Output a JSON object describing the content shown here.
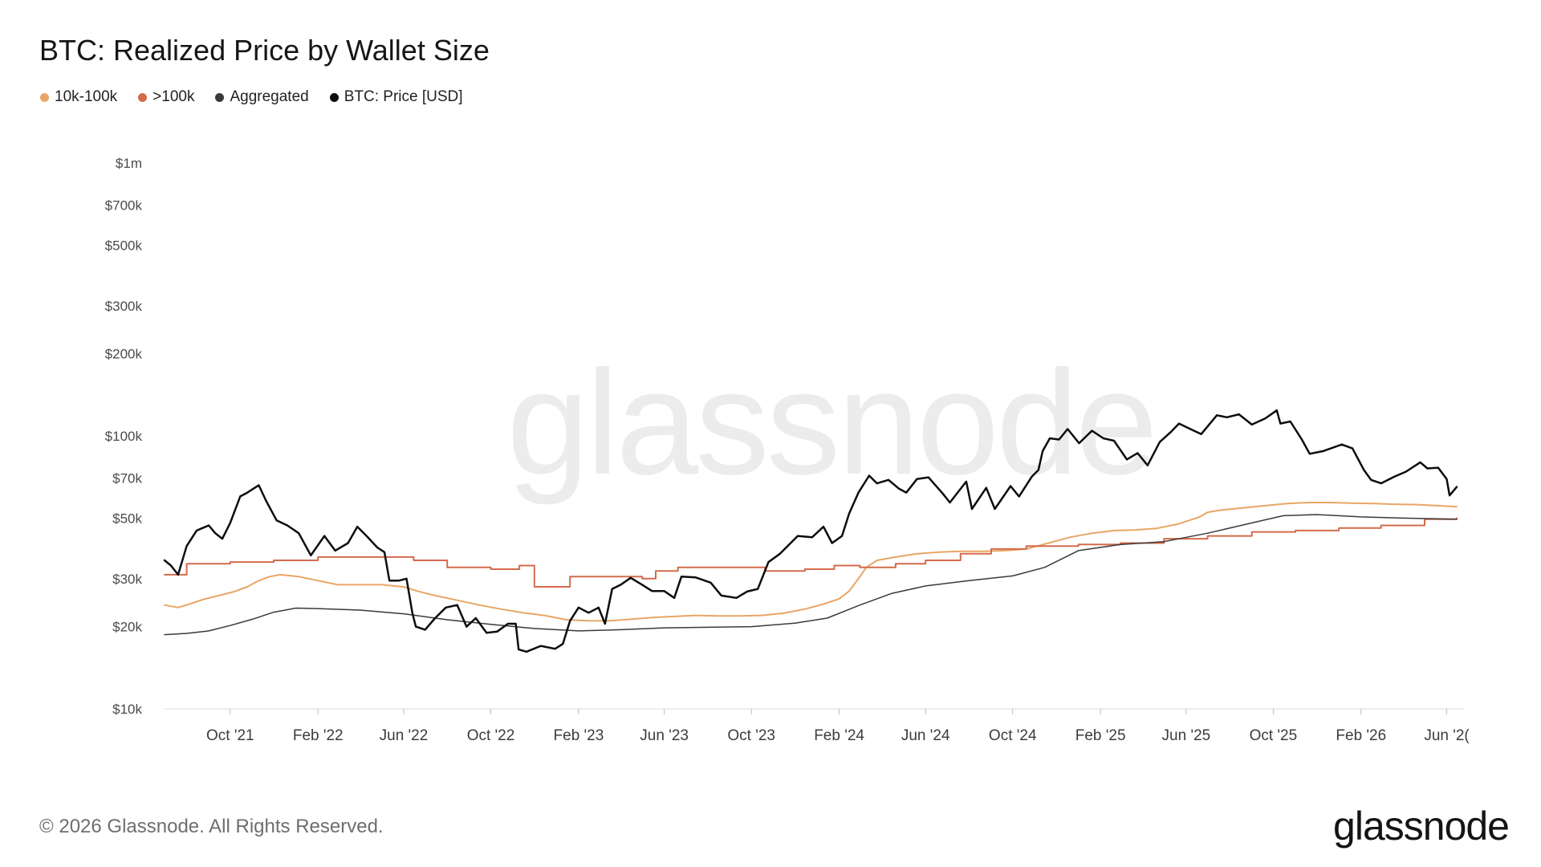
{
  "chart_data": {
    "type": "line",
    "title": "BTC: Realized Price by Wallet Size",
    "xlabel": "",
    "ylabel": "",
    "y_scale": "log",
    "ylim": [
      10000,
      1000000
    ],
    "y_ticks": [
      10000,
      20000,
      30000,
      50000,
      70000,
      100000,
      200000,
      300000,
      500000,
      700000,
      1000000
    ],
    "y_tick_labels": [
      "$10k",
      "$20k",
      "$30k",
      "$50k",
      "$70k",
      "$100k",
      "$200k",
      "$300k",
      "$500k",
      "$700k",
      "$1m"
    ],
    "xlim": [
      "2021-07-01",
      "2026-06-15"
    ],
    "x_ticks": [
      "2021-10-01",
      "2022-02-01",
      "2022-06-01",
      "2022-10-01",
      "2023-02-01",
      "2023-06-01",
      "2023-10-01",
      "2024-02-01",
      "2024-06-01",
      "2024-10-01",
      "2025-02-01",
      "2025-06-01",
      "2025-10-01",
      "2026-02-01",
      "2026-06-01"
    ],
    "x_tick_labels": [
      "Oct '21",
      "Feb '22",
      "Jun '22",
      "Oct '22",
      "Feb '23",
      "Jun '23",
      "Oct '23",
      "Feb '24",
      "Jun '24",
      "Oct '24",
      "Feb '25",
      "Jun '25",
      "Oct '25",
      "Feb '26",
      "Jun '2("
    ],
    "grid": false,
    "legend_position": "top-left",
    "series": [
      {
        "name": "10k-100k",
        "color": "#e8a666",
        "width": 2,
        "step": false,
        "x": [
          "2021-07-01",
          "2021-07-20",
          "2021-08-05",
          "2021-08-25",
          "2021-09-15",
          "2021-10-05",
          "2021-10-25",
          "2021-11-10",
          "2021-11-25",
          "2021-12-10",
          "2022-01-05",
          "2022-02-01",
          "2022-03-01",
          "2022-04-01",
          "2022-05-01",
          "2022-06-01",
          "2022-06-20",
          "2022-07-15",
          "2022-08-15",
          "2022-09-15",
          "2022-10-15",
          "2022-11-15",
          "2022-12-15",
          "2023-01-15",
          "2023-02-15",
          "2023-03-15",
          "2023-04-15",
          "2023-05-15",
          "2023-06-15",
          "2023-07-15",
          "2023-08-15",
          "2023-09-15",
          "2023-10-15",
          "2023-11-15",
          "2023-12-15",
          "2024-01-10",
          "2024-02-01",
          "2024-02-15",
          "2024-02-28",
          "2024-03-10",
          "2024-03-25",
          "2024-04-20",
          "2024-05-20",
          "2024-06-20",
          "2024-07-20",
          "2024-08-20",
          "2024-09-20",
          "2024-10-20",
          "2024-11-20",
          "2024-12-20",
          "2025-01-20",
          "2025-02-20",
          "2025-03-20",
          "2025-04-20",
          "2025-05-20",
          "2025-06-20",
          "2025-07-01",
          "2025-07-20",
          "2025-08-20",
          "2025-09-20",
          "2025-10-20",
          "2025-11-20",
          "2025-12-20",
          "2026-01-20",
          "2026-02-20",
          "2026-03-20",
          "2026-04-20",
          "2026-05-20",
          "2026-06-15"
        ],
        "y": [
          24000,
          23500,
          24200,
          25200,
          26000,
          26800,
          28000,
          29500,
          30500,
          31000,
          30500,
          29500,
          28500,
          28500,
          28500,
          28000,
          27000,
          26000,
          25000,
          24000,
          23200,
          22500,
          22000,
          21200,
          21000,
          21000,
          21300,
          21600,
          21800,
          22000,
          21900,
          21900,
          22000,
          22400,
          23200,
          24200,
          25300,
          27000,
          30000,
          33000,
          35000,
          36000,
          37000,
          37500,
          37800,
          37800,
          38000,
          38500,
          40500,
          42500,
          44000,
          45000,
          45200,
          45800,
          47500,
          50500,
          52500,
          53500,
          54500,
          55500,
          56500,
          57000,
          57000,
          56700,
          56500,
          56200,
          56000,
          55500,
          55000
        ]
      },
      {
        "name": ">100k",
        "color": "#d36b4b",
        "width": 2,
        "step": true,
        "x": [
          "2021-07-01",
          "2021-08-01",
          "2021-10-01",
          "2021-12-01",
          "2022-02-01",
          "2022-04-15",
          "2022-06-15",
          "2022-08-01",
          "2022-10-01",
          "2022-11-10",
          "2022-12-01",
          "2023-01-20",
          "2023-05-01",
          "2023-05-20",
          "2023-06-20",
          "2023-10-20",
          "2023-12-15",
          "2024-01-25",
          "2024-03-01",
          "2024-04-20",
          "2024-06-01",
          "2024-07-20",
          "2024-09-01",
          "2024-10-20",
          "2025-01-01",
          "2025-03-01",
          "2025-05-01",
          "2025-07-01",
          "2025-09-01",
          "2025-11-01",
          "2026-01-01",
          "2026-03-01",
          "2026-05-01",
          "2026-06-15"
        ],
        "y": [
          31000,
          34000,
          34500,
          35000,
          36000,
          36000,
          35000,
          33000,
          32500,
          33500,
          28000,
          30500,
          30000,
          32000,
          33000,
          32000,
          32500,
          33500,
          33000,
          34000,
          35000,
          37000,
          38500,
          39500,
          40000,
          40500,
          42000,
          43000,
          44500,
          45000,
          46000,
          47000,
          49500,
          50000
        ]
      },
      {
        "name": "Aggregated",
        "color": "#3a3a3a",
        "width": 1.5,
        "step": false,
        "x": [
          "2021-07-01",
          "2021-08-01",
          "2021-09-01",
          "2021-10-01",
          "2021-11-01",
          "2021-12-01",
          "2022-01-01",
          "2022-02-01",
          "2022-04-01",
          "2022-06-01",
          "2022-08-01",
          "2022-10-01",
          "2022-12-01",
          "2023-02-01",
          "2023-04-01",
          "2023-06-01",
          "2023-08-01",
          "2023-10-01",
          "2023-12-01",
          "2024-01-15",
          "2024-03-01",
          "2024-04-15",
          "2024-06-01",
          "2024-08-01",
          "2024-10-01",
          "2024-11-15",
          "2025-01-01",
          "2025-03-01",
          "2025-05-01",
          "2025-07-01",
          "2025-09-01",
          "2025-10-15",
          "2025-12-01",
          "2026-02-01",
          "2026-04-01",
          "2026-06-15"
        ],
        "y": [
          18700,
          18900,
          19300,
          20200,
          21300,
          22600,
          23400,
          23300,
          23000,
          22300,
          21200,
          20400,
          19700,
          19300,
          19500,
          19800,
          19900,
          20000,
          20600,
          21500,
          24000,
          26500,
          28200,
          29500,
          30700,
          33000,
          38000,
          40000,
          41000,
          44000,
          48000,
          51000,
          51500,
          50500,
          50000,
          49500
        ]
      },
      {
        "name": "BTC: Price [USD]",
        "color": "#0d0d0d",
        "width": 2.5,
        "step": false,
        "x": [
          "2021-07-01",
          "2021-07-10",
          "2021-07-20",
          "2021-08-01",
          "2021-08-15",
          "2021-09-01",
          "2021-09-10",
          "2021-09-20",
          "2021-10-01",
          "2021-10-15",
          "2021-10-25",
          "2021-11-10",
          "2021-11-20",
          "2021-12-05",
          "2021-12-20",
          "2022-01-05",
          "2022-01-22",
          "2022-02-10",
          "2022-02-25",
          "2022-03-15",
          "2022-03-28",
          "2022-04-10",
          "2022-04-25",
          "2022-05-05",
          "2022-05-12",
          "2022-05-25",
          "2022-06-05",
          "2022-06-13",
          "2022-06-18",
          "2022-07-01",
          "2022-07-15",
          "2022-07-30",
          "2022-08-15",
          "2022-08-28",
          "2022-09-10",
          "2022-09-25",
          "2022-10-10",
          "2022-10-25",
          "2022-11-05",
          "2022-11-09",
          "2022-11-20",
          "2022-12-10",
          "2022-12-30",
          "2023-01-10",
          "2023-01-20",
          "2023-02-01",
          "2023-02-15",
          "2023-03-01",
          "2023-03-10",
          "2023-03-20",
          "2023-04-01",
          "2023-04-15",
          "2023-05-01",
          "2023-05-15",
          "2023-06-01",
          "2023-06-15",
          "2023-06-25",
          "2023-07-15",
          "2023-08-05",
          "2023-08-20",
          "2023-09-10",
          "2023-09-25",
          "2023-10-10",
          "2023-10-25",
          "2023-11-10",
          "2023-12-05",
          "2023-12-25",
          "2024-01-10",
          "2024-01-22",
          "2024-02-05",
          "2024-02-15",
          "2024-02-28",
          "2024-03-14",
          "2024-03-25",
          "2024-04-10",
          "2024-04-25",
          "2024-05-05",
          "2024-05-20",
          "2024-06-05",
          "2024-06-25",
          "2024-07-05",
          "2024-07-28",
          "2024-08-05",
          "2024-08-25",
          "2024-09-06",
          "2024-09-28",
          "2024-10-10",
          "2024-10-28",
          "2024-11-06",
          "2024-11-12",
          "2024-11-22",
          "2024-12-05",
          "2024-12-17",
          "2025-01-02",
          "2025-01-20",
          "2025-02-05",
          "2025-02-20",
          "2025-03-10",
          "2025-03-25",
          "2025-04-08",
          "2025-04-25",
          "2025-05-10",
          "2025-05-22",
          "2025-06-10",
          "2025-06-22",
          "2025-07-14",
          "2025-07-28",
          "2025-08-14",
          "2025-09-01",
          "2025-09-20",
          "2025-10-06",
          "2025-10-11",
          "2025-10-25",
          "2025-11-10",
          "2025-11-21",
          "2025-12-10",
          "2026-01-05",
          "2026-01-20",
          "2026-02-05",
          "2026-02-15",
          "2026-03-01",
          "2026-03-20",
          "2026-04-05",
          "2026-04-25",
          "2026-05-05",
          "2026-05-20",
          "2026-06-01",
          "2026-06-05",
          "2026-06-15"
        ],
        "y": [
          35000,
          33500,
          31000,
          39500,
          45000,
          47000,
          44000,
          42000,
          48000,
          60000,
          62000,
          66000,
          58000,
          49000,
          47000,
          44000,
          36500,
          43000,
          38000,
          40500,
          46500,
          43000,
          39000,
          37500,
          29500,
          29500,
          30000,
          22500,
          20000,
          19500,
          21500,
          23500,
          24000,
          20000,
          21500,
          19000,
          19200,
          20500,
          20500,
          16500,
          16200,
          17000,
          16600,
          17300,
          21000,
          23500,
          22500,
          23500,
          20500,
          27500,
          28500,
          30200,
          28500,
          27000,
          27000,
          25500,
          30500,
          30300,
          29000,
          26000,
          25500,
          26900,
          27500,
          34500,
          37000,
          43000,
          42500,
          46500,
          40500,
          43000,
          52000,
          62000,
          71500,
          67000,
          69000,
          64000,
          62000,
          69500,
          70500,
          61500,
          57000,
          68000,
          54000,
          64500,
          54000,
          65500,
          60000,
          71000,
          75000,
          88000,
          98000,
          97000,
          106000,
          94000,
          104500,
          98000,
          96000,
          82000,
          86500,
          78000,
          95000,
          103000,
          111000,
          105000,
          101500,
          119000,
          117000,
          120000,
          110000,
          116000,
          124000,
          111000,
          113000,
          97000,
          86000,
          88000,
          93000,
          90000,
          75000,
          69000,
          67000,
          71000,
          74000,
          80000,
          76000,
          76500,
          69500,
          60500,
          65000
        ]
      }
    ]
  },
  "footer": {
    "copyright": "© 2026 Glassnode. All Rights Reserved.",
    "logo": "glassnode"
  },
  "watermark": "glassnode"
}
